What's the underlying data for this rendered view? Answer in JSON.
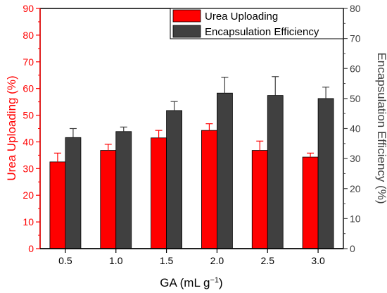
{
  "chart_data": {
    "type": "bar",
    "title": "",
    "xlabel_main": "GA (mL g",
    "xlabel_sup": "−1",
    "xlabel_close": ")",
    "ylabel_left": "Urea Uploading (%)",
    "ylabel_right": "Encapsulation Efficiency (%)",
    "categories": [
      "0.5",
      "1.0",
      "1.5",
      "2.0",
      "2.5",
      "3.0"
    ],
    "ylim_left": [
      0,
      90
    ],
    "yticks_left": [
      0,
      10,
      20,
      30,
      40,
      50,
      60,
      70,
      80,
      90
    ],
    "ylim_right": [
      0,
      80
    ],
    "yticks_right": [
      0,
      10,
      20,
      30,
      40,
      50,
      60,
      70,
      80
    ],
    "grid": false,
    "legend_position": "top-right",
    "series": [
      {
        "name": "Urea Uploading",
        "axis": "left",
        "color": "#ff0000",
        "values": [
          32.5,
          36.8,
          41.5,
          44.3,
          36.8,
          34.3
        ],
        "errors": [
          3.3,
          2.3,
          2.8,
          2.5,
          3.5,
          1.5
        ]
      },
      {
        "name": "Encapsulation Efficiency",
        "axis": "right",
        "color": "#404040",
        "values": [
          37.0,
          39.0,
          46.0,
          51.8,
          51.0,
          50.0
        ],
        "errors": [
          3.0,
          1.5,
          3.0,
          5.3,
          6.3,
          3.8
        ]
      }
    ],
    "colors": {
      "left_axis": "#ff0000",
      "right_axis": "#404040"
    }
  }
}
